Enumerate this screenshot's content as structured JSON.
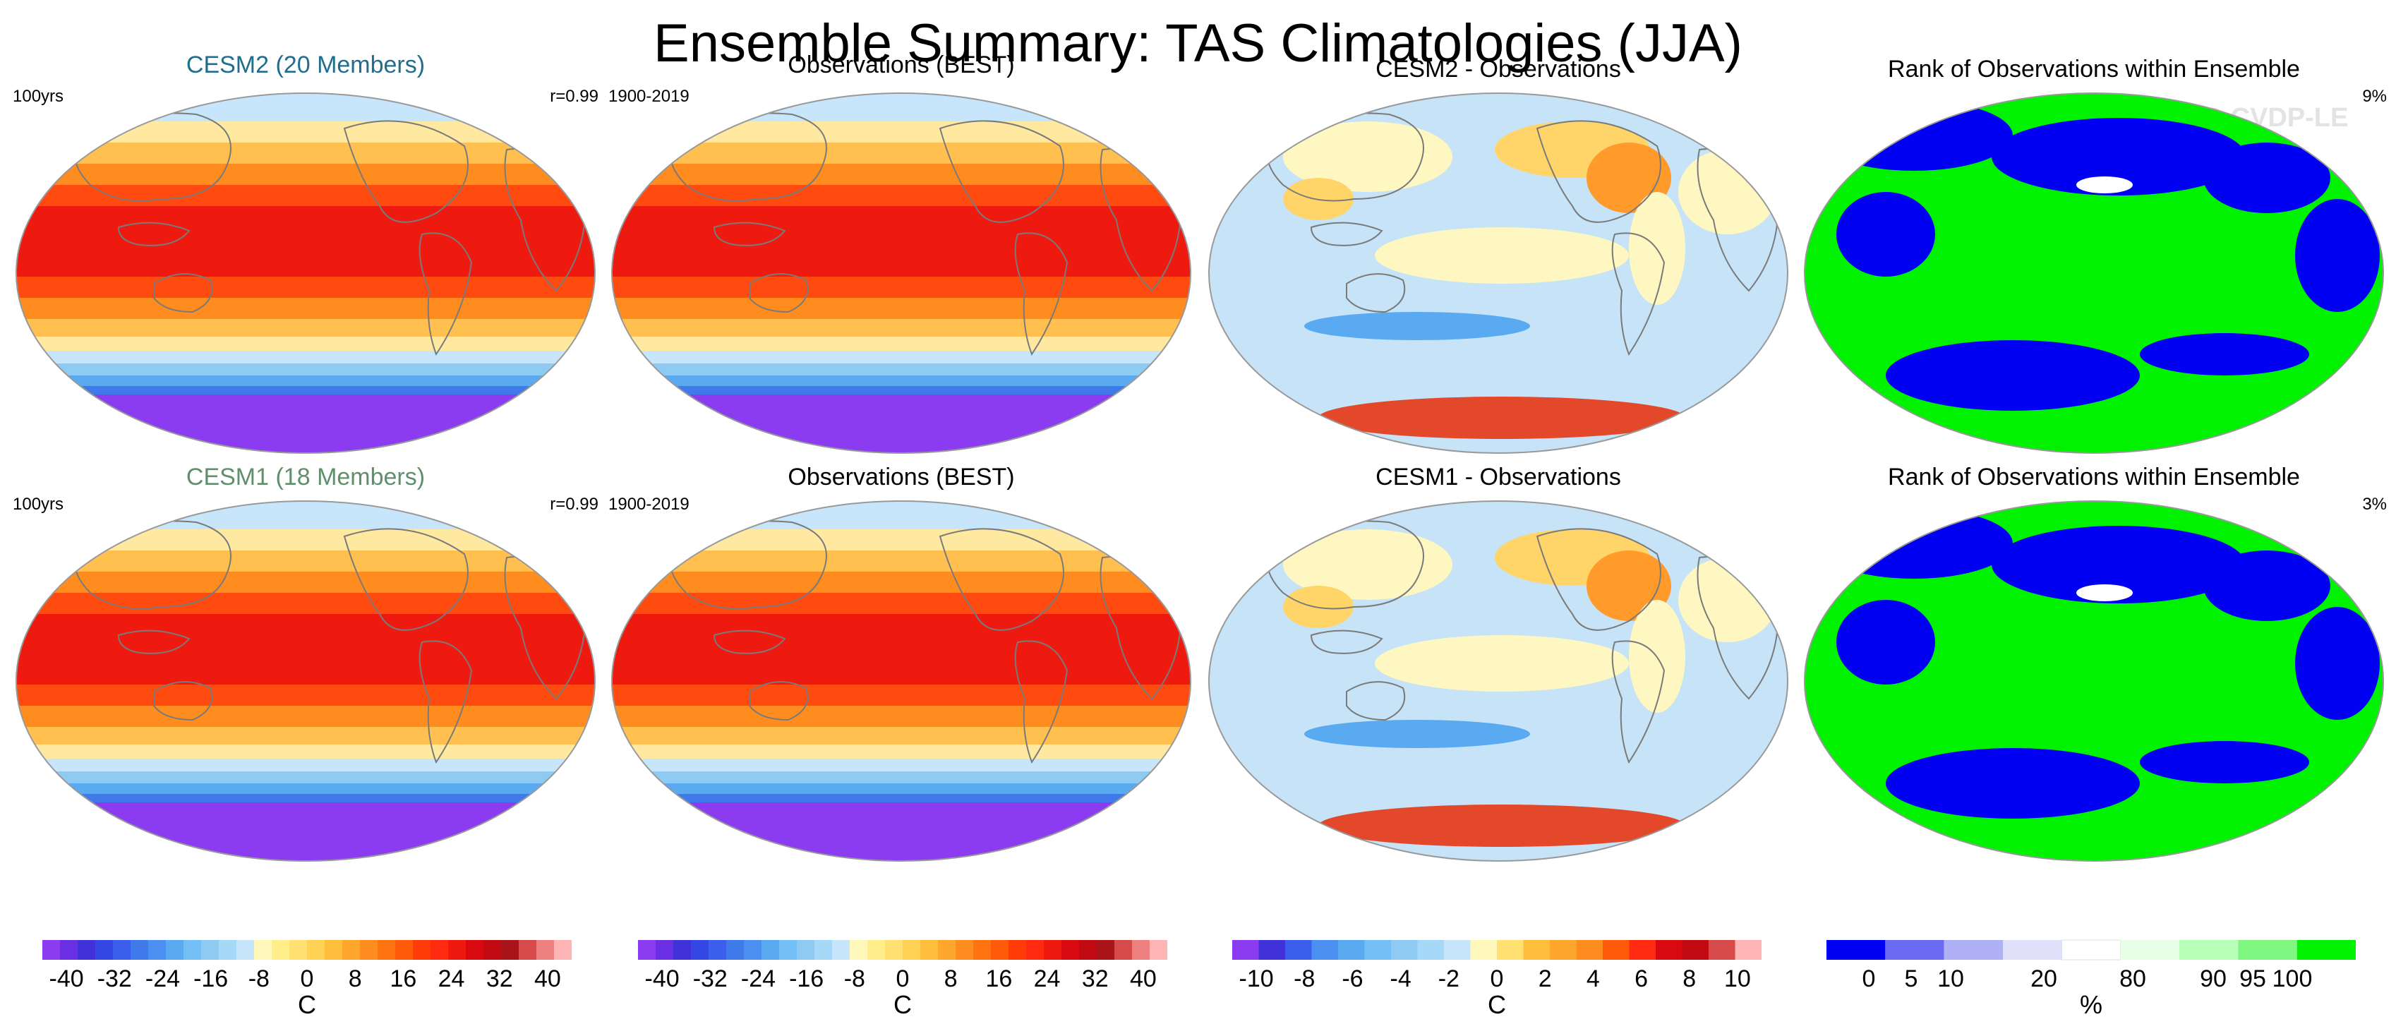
{
  "title": "Ensemble Summary: TAS Climatologies (JJA)",
  "watermark": "© CVDP-LE",
  "colors": {
    "model_top_title": "#1f6d8f",
    "model_bottom_title": "#5f8f6b",
    "map_temp": [
      "#f0f6ff",
      "#ffe8a0",
      "#ffc050",
      "#ff8c1e",
      "#ff4b10",
      "#ee1a10",
      "#d8090f"
    ],
    "map_polar": [
      "#c8e6fb",
      "#8fcaf3",
      "#5aaaf2",
      "#3f79ea",
      "#8b3cf0"
    ],
    "map_diff": [
      "#c6e3f7",
      "#fff7c2",
      "#ffd56a",
      "#ff9a2b",
      "#e4482a",
      "#5aaaf2"
    ],
    "map_rank": [
      "#00f200",
      "#0000f2",
      "#ffffff"
    ],
    "temp_scale": [
      "#8b3cf0",
      "#6a2ee3",
      "#4032d8",
      "#3447e4",
      "#3b5fec",
      "#3f79ea",
      "#4b8ff0",
      "#5aaaf2",
      "#74bff5",
      "#8fcaf3",
      "#a6d8f8",
      "#c8e6fb",
      "#fff8ba",
      "#ffee8a",
      "#ffe070",
      "#ffd256",
      "#ffbd3c",
      "#ffa72c",
      "#ff8c1e",
      "#ff7410",
      "#ff5a0a",
      "#ff3c08",
      "#ff2a10",
      "#ee1a10",
      "#d8090f",
      "#c20a12",
      "#a9141a",
      "#d64a4a",
      "#ee8080",
      "#ffb5b5"
    ],
    "diff_scale": [
      "#8b3cf0",
      "#4032d8",
      "#3b5fec",
      "#4b8ff0",
      "#5aaaf2",
      "#74bff5",
      "#8fcaf3",
      "#a6d8f8",
      "#c8e6fb",
      "#fff8ba",
      "#ffe070",
      "#ffbd3c",
      "#ffa72c",
      "#ff8c1e",
      "#ff5a0a",
      "#ff2a10",
      "#d8090f",
      "#c20a12",
      "#d64a4a",
      "#ffb5b5"
    ],
    "rank_scale": [
      "#0000f2",
      "#6a6af2",
      "#b0b0f7",
      "#e0e0fb",
      "#ffffff",
      "#e6ffe6",
      "#b8ffb8",
      "#80f780",
      "#00f200"
    ]
  },
  "panels": [
    {
      "id": "cesm2-model",
      "title": "CESM2 (20 Members)",
      "title_style": "model_top",
      "left_label": "100yrs",
      "right_label": "r=0.99",
      "map": "temp"
    },
    {
      "id": "obs-top",
      "title": "Observations (BEST)",
      "title_style": "plain",
      "left_label": "1900-2019",
      "right_label": "",
      "map": "temp"
    },
    {
      "id": "cesm2-diff",
      "title": "CESM2 - Observations",
      "title_style": "plain",
      "left_label": "",
      "right_label": "",
      "map": "diff"
    },
    {
      "id": "rank-top",
      "title": "Rank of Observations within Ensemble",
      "title_style": "plain",
      "left_label": "",
      "right_label": "9%",
      "map": "rank"
    },
    {
      "id": "cesm1-model",
      "title": "CESM1 (18 Members)",
      "title_style": "model_bottom",
      "left_label": "100yrs",
      "right_label": "r=0.99",
      "map": "temp"
    },
    {
      "id": "obs-bottom",
      "title": "Observations (BEST)",
      "title_style": "plain",
      "left_label": "1900-2019",
      "right_label": "",
      "map": "temp"
    },
    {
      "id": "cesm1-diff",
      "title": "CESM1 - Observations",
      "title_style": "plain",
      "left_label": "",
      "right_label": "",
      "map": "diff"
    },
    {
      "id": "rank-bottom",
      "title": "Rank of Observations within Ensemble",
      "title_style": "plain",
      "left_label": "",
      "right_label": "3%",
      "map": "rank"
    }
  ],
  "chart_data": [
    {
      "type": "colorbar",
      "id": "temp-bar-1",
      "scale": "temp",
      "range": [
        -44,
        44
      ],
      "ticks": [
        -40,
        -32,
        -24,
        -16,
        -8,
        0,
        8,
        16,
        24,
        32,
        40
      ],
      "tick_labels": [
        "-40",
        "-32",
        "-24",
        "-16",
        "-8",
        "0",
        "8",
        "16",
        "24",
        "32",
        "40"
      ],
      "xlabel": "C"
    },
    {
      "type": "colorbar",
      "id": "temp-bar-2",
      "scale": "temp",
      "range": [
        -44,
        44
      ],
      "ticks": [
        -40,
        -32,
        -24,
        -16,
        -8,
        0,
        8,
        16,
        24,
        32,
        40
      ],
      "tick_labels": [
        "-40",
        "-32",
        "-24",
        "-16",
        "-8",
        "0",
        "8",
        "16",
        "24",
        "32",
        "40"
      ],
      "xlabel": "C"
    },
    {
      "type": "colorbar",
      "id": "diff-bar",
      "scale": "diff",
      "range": [
        -11,
        11
      ],
      "ticks": [
        -10,
        -8,
        -6,
        -4,
        -2,
        0,
        2,
        4,
        6,
        8,
        10
      ],
      "tick_labels": [
        "-10",
        "-8",
        "-6",
        "-4",
        "-2",
        "0",
        "2",
        "4",
        "6",
        "8",
        "10"
      ],
      "xlabel": "C"
    },
    {
      "type": "colorbar",
      "id": "rank-bar",
      "scale": "rank",
      "bounds": [
        0,
        5,
        10,
        20,
        80,
        90,
        95,
        100
      ],
      "tick_labels": [
        "0",
        "5",
        "10",
        "20",
        "80",
        "90",
        "95",
        "100"
      ],
      "xlabel": "%"
    }
  ]
}
